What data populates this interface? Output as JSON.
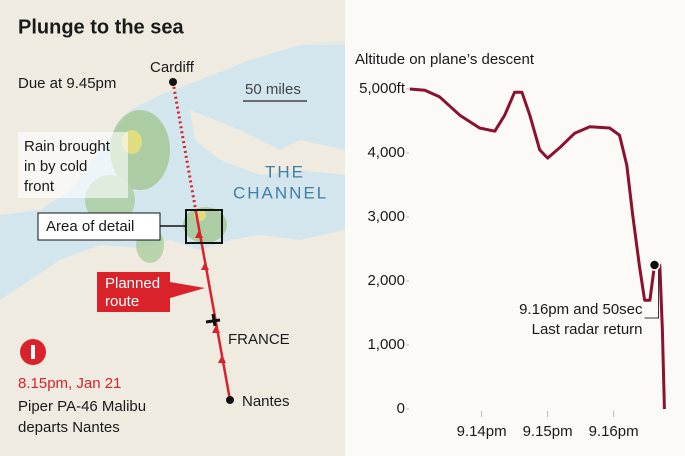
{
  "title": "Plunge to the sea",
  "map": {
    "due": "Due at 9.45pm",
    "origin_city": "Cardiff",
    "scale": "50 miles",
    "rain": [
      "Rain brought",
      "in by cold",
      "front"
    ],
    "sea": [
      "THE",
      "CHANNEL"
    ],
    "detail": "Area of detail",
    "route": [
      "Planned",
      "route"
    ],
    "country": "FRANCE",
    "departure_city": "Nantes",
    "departure_time": "8.15pm, Jan 21",
    "plane": [
      "Piper PA-46 Malibu",
      "departs Nantes"
    ]
  },
  "chart_data": {
    "type": "line",
    "title": "Altitude on plane’s descent",
    "color": "#8c1130",
    "x": [
      12.91,
      13.14,
      13.36,
      13.67,
      13.97,
      14.2,
      14.35,
      14.5,
      14.61,
      14.73,
      14.88,
      15.0,
      15.18,
      15.41,
      15.64,
      15.94,
      16.09,
      16.2,
      16.29,
      16.39,
      16.47,
      16.55,
      16.62,
      16.7,
      16.74,
      16.77
    ],
    "values": [
      5000,
      4980,
      4880,
      4590,
      4390,
      4340,
      4590,
      4950,
      4950,
      4590,
      4050,
      3920,
      4080,
      4310,
      4410,
      4390,
      4280,
      3810,
      3030,
      2250,
      1700,
      1700,
      2250,
      2250,
      1230,
      0
    ],
    "xlim": [
      12.9,
      16.9
    ],
    "ylim": [
      0,
      5000
    ],
    "xticks": [
      {
        "value": 14,
        "label": "9.14pm"
      },
      {
        "value": 15,
        "label": "9.15pm"
      },
      {
        "value": 16,
        "label": "9.16pm"
      }
    ],
    "yticks": [
      0,
      {
        "value": 1000,
        "label": "1,000"
      },
      {
        "value": 2000,
        "label": "2,000"
      },
      {
        "value": 3000,
        "label": "3,000"
      },
      {
        "value": 4000,
        "label": "4,000"
      },
      {
        "value": 5000,
        "label": "5,000ft"
      }
    ],
    "annotation": {
      "x": 16.62,
      "y": 2250,
      "label": [
        "9.16pm and 50sec",
        "Last radar return"
      ]
    }
  }
}
